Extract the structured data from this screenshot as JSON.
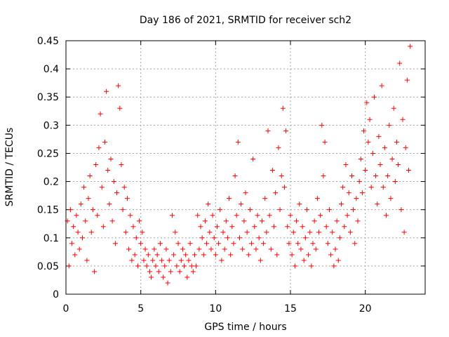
{
  "chart_data": {
    "type": "scatter",
    "title": "Day 186 of 2021, SRMTID for receiver sch2",
    "xlabel": "GPS time / hours",
    "ylabel": "SRMTID / TECUs",
    "xlim": [
      0,
      24
    ],
    "ylim": [
      0,
      0.45
    ],
    "xticks": [
      0,
      5,
      10,
      15,
      20
    ],
    "xtick_labels": [
      "0",
      "5",
      "10",
      "15",
      "20"
    ],
    "yticks": [
      0,
      0.05,
      0.1,
      0.15,
      0.2,
      0.25,
      0.3,
      0.35,
      0.4,
      0.45
    ],
    "ytick_labels": [
      "0",
      "0.05",
      "0.1",
      "0.15",
      "0.2",
      "0.25",
      "0.3",
      "0.35",
      "0.4",
      "0.45"
    ],
    "grid": true,
    "marker": "plus",
    "color": "#ff0000",
    "series": [
      {
        "name": "SRMTID",
        "marker": "plus",
        "points": [
          [
            0.1,
            0.13
          ],
          [
            0.2,
            0.05
          ],
          [
            0.3,
            0.15
          ],
          [
            0.4,
            0.09
          ],
          [
            0.5,
            0.12
          ],
          [
            0.6,
            0.07
          ],
          [
            0.7,
            0.14
          ],
          [
            0.8,
            0.11
          ],
          [
            0.9,
            0.08
          ],
          [
            1.0,
            0.16
          ],
          [
            1.1,
            0.1
          ],
          [
            1.2,
            0.19
          ],
          [
            1.3,
            0.13
          ],
          [
            1.4,
            0.06
          ],
          [
            1.5,
            0.17
          ],
          [
            1.6,
            0.21
          ],
          [
            1.7,
            0.11
          ],
          [
            1.8,
            0.15
          ],
          [
            1.9,
            0.04
          ],
          [
            2.0,
            0.23
          ],
          [
            2.1,
            0.14
          ],
          [
            2.2,
            0.26
          ],
          [
            2.3,
            0.32
          ],
          [
            2.4,
            0.19
          ],
          [
            2.5,
            0.12
          ],
          [
            2.6,
            0.27
          ],
          [
            2.7,
            0.36
          ],
          [
            2.8,
            0.22
          ],
          [
            2.9,
            0.16
          ],
          [
            3.0,
            0.24
          ],
          [
            3.1,
            0.13
          ],
          [
            3.2,
            0.2
          ],
          [
            3.3,
            0.09
          ],
          [
            3.4,
            0.18
          ],
          [
            3.5,
            0.37
          ],
          [
            3.6,
            0.33
          ],
          [
            3.7,
            0.23
          ],
          [
            3.8,
            0.15
          ],
          [
            3.9,
            0.19
          ],
          [
            4.0,
            0.11
          ],
          [
            4.1,
            0.17
          ],
          [
            4.2,
            0.08
          ],
          [
            4.3,
            0.14
          ],
          [
            4.4,
            0.06
          ],
          [
            4.5,
            0.12
          ],
          [
            4.6,
            0.07
          ],
          [
            4.7,
            0.1
          ],
          [
            4.8,
            0.05
          ],
          [
            4.9,
            0.13
          ],
          [
            5.0,
            0.09
          ],
          [
            5.1,
            0.11
          ],
          [
            5.2,
            0.06
          ],
          [
            5.3,
            0.08
          ],
          [
            5.4,
            0.05
          ],
          [
            5.5,
            0.07
          ],
          [
            5.6,
            0.04
          ],
          [
            5.7,
            0.03
          ],
          [
            5.8,
            0.06
          ],
          [
            5.9,
            0.08
          ],
          [
            6.0,
            0.05
          ],
          [
            6.1,
            0.07
          ],
          [
            6.2,
            0.04
          ],
          [
            6.3,
            0.09
          ],
          [
            6.4,
            0.06
          ],
          [
            6.5,
            0.03
          ],
          [
            6.6,
            0.05
          ],
          [
            6.7,
            0.08
          ],
          [
            6.8,
            0.02
          ],
          [
            6.9,
            0.06
          ],
          [
            7.0,
            0.04
          ],
          [
            7.1,
            0.14
          ],
          [
            7.2,
            0.07
          ],
          [
            7.3,
            0.11
          ],
          [
            7.4,
            0.05
          ],
          [
            7.5,
            0.09
          ],
          [
            7.6,
            0.04
          ],
          [
            7.7,
            0.06
          ],
          [
            7.8,
            0.08
          ],
          [
            7.9,
            0.05
          ],
          [
            8.0,
            0.07
          ],
          [
            8.1,
            0.03
          ],
          [
            8.2,
            0.06
          ],
          [
            8.3,
            0.09
          ],
          [
            8.4,
            0.05
          ],
          [
            8.5,
            0.04
          ],
          [
            8.6,
            0.07
          ],
          [
            8.7,
            0.05
          ],
          [
            8.8,
            0.14
          ],
          [
            8.9,
            0.08
          ],
          [
            9.0,
            0.12
          ],
          [
            9.1,
            0.1
          ],
          [
            9.2,
            0.07
          ],
          [
            9.3,
            0.13
          ],
          [
            9.4,
            0.09
          ],
          [
            9.5,
            0.16
          ],
          [
            9.6,
            0.11
          ],
          [
            9.7,
            0.08
          ],
          [
            9.8,
            0.14
          ],
          [
            9.9,
            0.1
          ],
          [
            10.0,
            0.07
          ],
          [
            10.1,
            0.12
          ],
          [
            10.2,
            0.09
          ],
          [
            10.3,
            0.15
          ],
          [
            10.4,
            0.06
          ],
          [
            10.5,
            0.11
          ],
          [
            10.6,
            0.08
          ],
          [
            10.7,
            0.13
          ],
          [
            10.8,
            0.1
          ],
          [
            10.9,
            0.17
          ],
          [
            11.0,
            0.07
          ],
          [
            11.1,
            0.12
          ],
          [
            11.2,
            0.09
          ],
          [
            11.3,
            0.21
          ],
          [
            11.4,
            0.14
          ],
          [
            11.5,
            0.27
          ],
          [
            11.6,
            0.1
          ],
          [
            11.7,
            0.16
          ],
          [
            11.8,
            0.08
          ],
          [
            11.9,
            0.13
          ],
          [
            12.0,
            0.18
          ],
          [
            12.1,
            0.11
          ],
          [
            12.2,
            0.07
          ],
          [
            12.3,
            0.15
          ],
          [
            12.4,
            0.09
          ],
          [
            12.5,
            0.24
          ],
          [
            12.6,
            0.12
          ],
          [
            12.7,
            0.08
          ],
          [
            12.8,
            0.14
          ],
          [
            12.9,
            0.1
          ],
          [
            13.0,
            0.06
          ],
          [
            13.1,
            0.13
          ],
          [
            13.2,
            0.09
          ],
          [
            13.3,
            0.17
          ],
          [
            13.4,
            0.11
          ],
          [
            13.5,
            0.29
          ],
          [
            13.6,
            0.14
          ],
          [
            13.7,
            0.08
          ],
          [
            13.8,
            0.22
          ],
          [
            13.9,
            0.12
          ],
          [
            14.0,
            0.18
          ],
          [
            14.1,
            0.07
          ],
          [
            14.2,
            0.26
          ],
          [
            14.3,
            0.15
          ],
          [
            14.4,
            0.21
          ],
          [
            14.5,
            0.33
          ],
          [
            14.6,
            0.19
          ],
          [
            14.7,
            0.29
          ],
          [
            14.8,
            0.12
          ],
          [
            14.9,
            0.09
          ],
          [
            15.0,
            0.14
          ],
          [
            15.1,
            0.07
          ],
          [
            15.2,
            0.11
          ],
          [
            15.3,
            0.05
          ],
          [
            15.4,
            0.13
          ],
          [
            15.5,
            0.09
          ],
          [
            15.6,
            0.16
          ],
          [
            15.7,
            0.08
          ],
          [
            15.8,
            0.12
          ],
          [
            15.9,
            0.06
          ],
          [
            16.0,
            0.1
          ],
          [
            16.1,
            0.15
          ],
          [
            16.2,
            0.07
          ],
          [
            16.3,
            0.11
          ],
          [
            16.4,
            0.05
          ],
          [
            16.5,
            0.09
          ],
          [
            16.6,
            0.13
          ],
          [
            16.7,
            0.08
          ],
          [
            16.8,
            0.17
          ],
          [
            16.9,
            0.11
          ],
          [
            17.0,
            0.14
          ],
          [
            17.1,
            0.3
          ],
          [
            17.2,
            0.21
          ],
          [
            17.3,
            0.27
          ],
          [
            17.4,
            0.12
          ],
          [
            17.5,
            0.09
          ],
          [
            17.6,
            0.15
          ],
          [
            17.7,
            0.07
          ],
          [
            17.8,
            0.11
          ],
          [
            17.9,
            0.05
          ],
          [
            18.0,
            0.08
          ],
          [
            18.1,
            0.13
          ],
          [
            18.2,
            0.06
          ],
          [
            18.3,
            0.1
          ],
          [
            18.4,
            0.16
          ],
          [
            18.5,
            0.19
          ],
          [
            18.6,
            0.12
          ],
          [
            18.7,
            0.23
          ],
          [
            18.8,
            0.14
          ],
          [
            18.9,
            0.18
          ],
          [
            19.0,
            0.11
          ],
          [
            19.1,
            0.21
          ],
          [
            19.2,
            0.15
          ],
          [
            19.3,
            0.09
          ],
          [
            19.4,
            0.17
          ],
          [
            19.5,
            0.13
          ],
          [
            19.6,
            0.2
          ],
          [
            19.7,
            0.24
          ],
          [
            19.8,
            0.18
          ],
          [
            19.9,
            0.29
          ],
          [
            20.0,
            0.22
          ],
          [
            20.1,
            0.34
          ],
          [
            20.2,
            0.27
          ],
          [
            20.3,
            0.31
          ],
          [
            20.4,
            0.19
          ],
          [
            20.5,
            0.25
          ],
          [
            20.6,
            0.35
          ],
          [
            20.7,
            0.21
          ],
          [
            20.8,
            0.16
          ],
          [
            20.9,
            0.28
          ],
          [
            21.0,
            0.23
          ],
          [
            21.1,
            0.37
          ],
          [
            21.2,
            0.19
          ],
          [
            21.3,
            0.26
          ],
          [
            21.4,
            0.14
          ],
          [
            21.5,
            0.21
          ],
          [
            21.6,
            0.3
          ],
          [
            21.7,
            0.17
          ],
          [
            21.8,
            0.24
          ],
          [
            21.9,
            0.33
          ],
          [
            22.0,
            0.2
          ],
          [
            22.1,
            0.27
          ],
          [
            22.2,
            0.23
          ],
          [
            22.3,
            0.41
          ],
          [
            22.4,
            0.15
          ],
          [
            22.5,
            0.31
          ],
          [
            22.6,
            0.11
          ],
          [
            22.7,
            0.26
          ],
          [
            22.8,
            0.38
          ],
          [
            22.9,
            0.22
          ],
          [
            23.0,
            0.44
          ]
        ]
      }
    ]
  }
}
